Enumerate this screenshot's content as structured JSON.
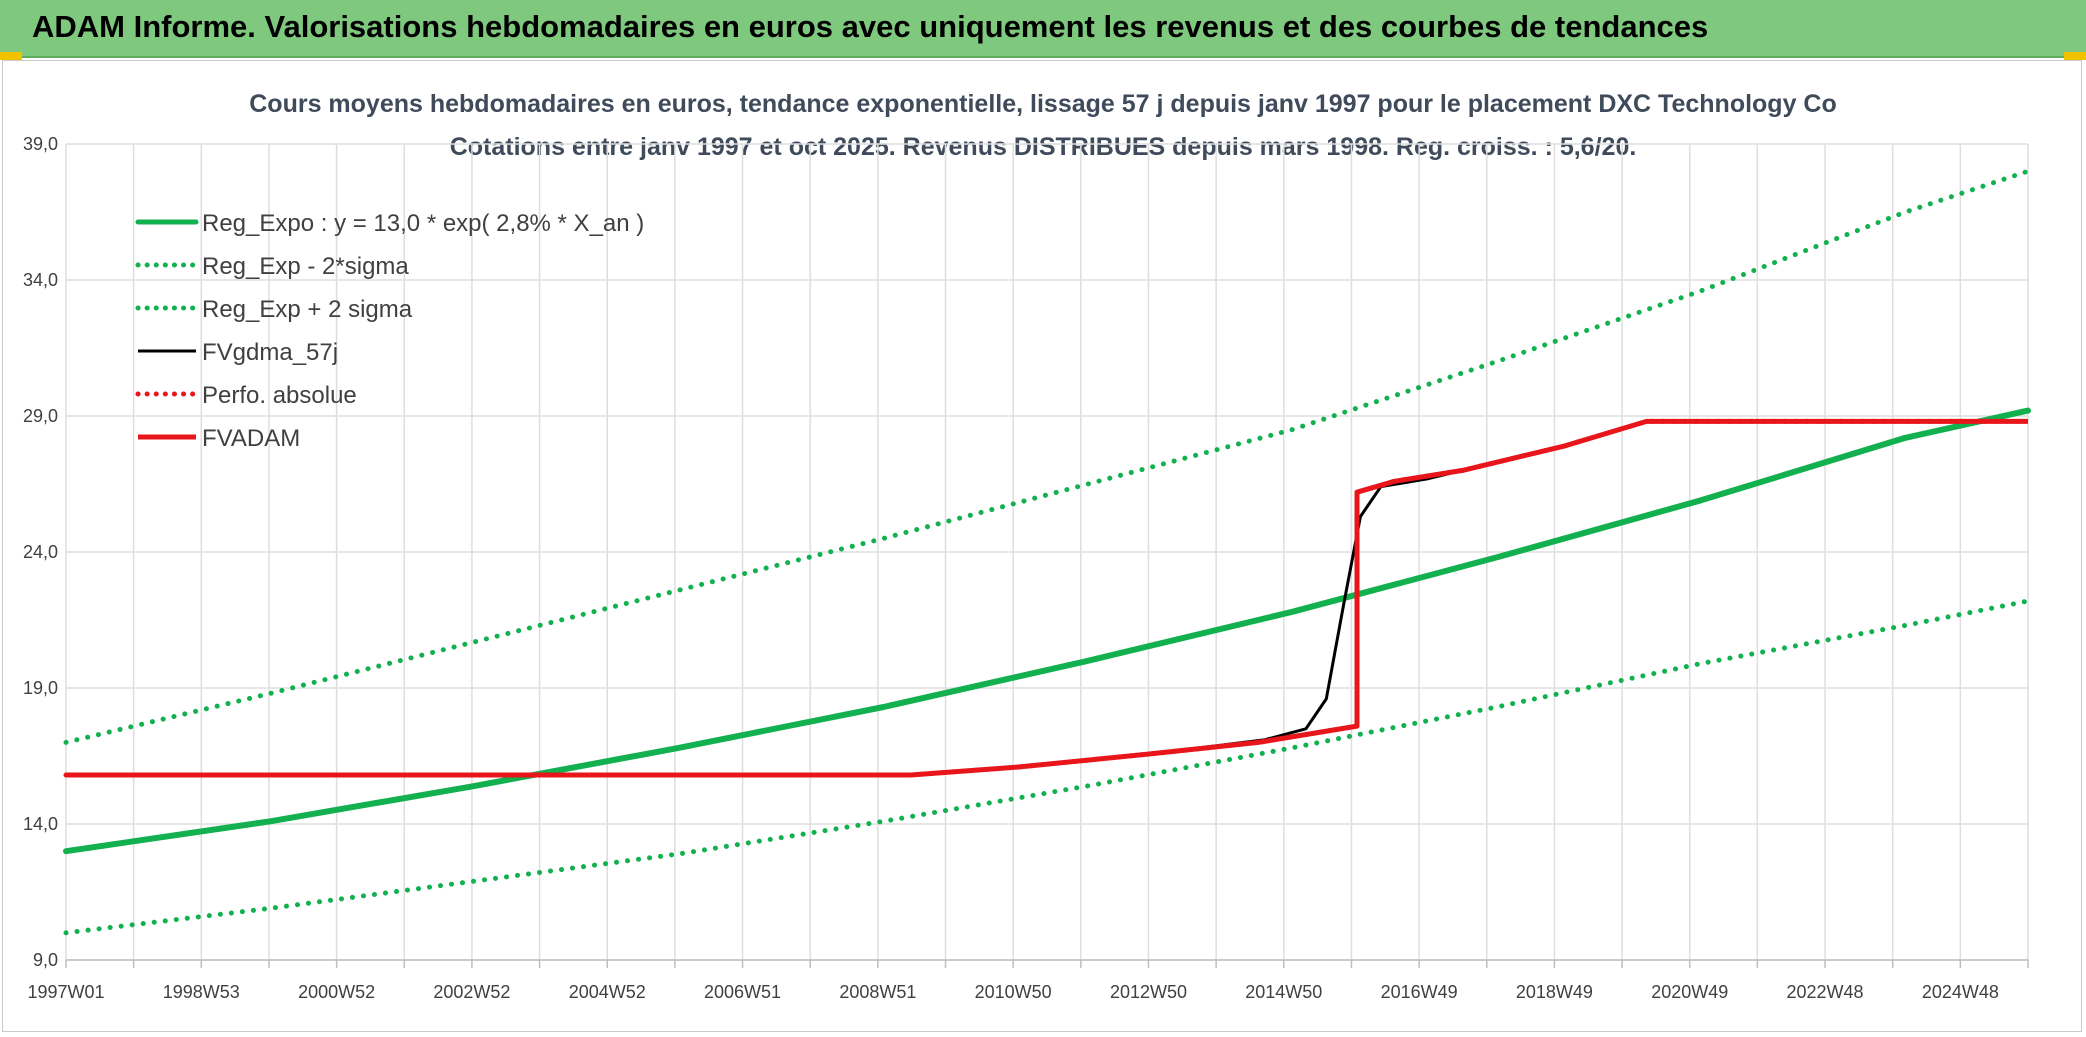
{
  "header": {
    "title": "ADAM Informe. Valorisations hebdomadaires en euros avec uniquement les revenus et des courbes de tendances"
  },
  "colors": {
    "banner": "#7fc97f",
    "green": "#12b04e",
    "black": "#000000",
    "red": "#e8151b",
    "grid": "#dedede"
  },
  "chart_data": {
    "type": "line",
    "title": "Cours moyens hebdomadaires en euros, tendance exponentielle, lissage 57 j depuis janv 1997 pour le placement DXC Technology Co",
    "subtitle": "Cotations entre janv 1997 et oct 2025. Revenus DISTRIBUES depuis mars 1998. Reg. croiss. : 5,6/20.",
    "xlabel": "",
    "ylabel": "",
    "ylim": [
      9.0,
      39.0
    ],
    "y_ticks": [
      "9,0",
      "14,0",
      "19,0",
      "24,0",
      "29,0",
      "34,0",
      "39,0"
    ],
    "x_ticks": [
      "1997W01",
      "1998W53",
      "2000W52",
      "2002W52",
      "2004W52",
      "2006W51",
      "2008W51",
      "2010W50",
      "2012W50",
      "2014W50",
      "2016W49",
      "2018W49",
      "2020W49",
      "2022W48",
      "2024W48"
    ],
    "grid": true,
    "legend_position": "top-left",
    "series": [
      {
        "name": "Reg_Expo : y = 13,0 * exp( 2,8% *  X_an )",
        "color": "#12b04e",
        "style": "solid",
        "x": [
          1997.0,
          2000.0,
          2003.0,
          2006.0,
          2009.0,
          2012.0,
          2015.0,
          2018.0,
          2021.0,
          2024.0,
          2025.8
        ],
        "y": [
          13.0,
          14.1,
          15.4,
          16.8,
          18.3,
          20.0,
          21.8,
          23.8,
          25.9,
          28.2,
          29.2
        ]
      },
      {
        "name": "Reg_Exp - 2*sigma",
        "color": "#12b04e",
        "style": "dotted",
        "x": [
          1997.0,
          2000.0,
          2003.0,
          2006.0,
          2009.0,
          2012.0,
          2015.0,
          2018.0,
          2021.0,
          2024.0,
          2025.8
        ],
        "y": [
          10.0,
          10.9,
          11.9,
          12.9,
          14.1,
          15.4,
          16.8,
          18.3,
          19.9,
          21.3,
          22.2
        ]
      },
      {
        "name": "Reg_Exp + 2 sigma",
        "color": "#12b04e",
        "style": "dotted",
        "x": [
          1997.0,
          2000.0,
          2003.0,
          2006.0,
          2009.0,
          2012.0,
          2015.0,
          2018.0,
          2021.0,
          2024.0,
          2025.8
        ],
        "y": [
          17.0,
          18.8,
          20.7,
          22.6,
          24.5,
          26.5,
          28.5,
          31.0,
          33.6,
          36.5,
          38.0
        ]
      },
      {
        "name": "FVgdma_57j",
        "color": "#000000",
        "style": "solid",
        "x": [
          1997.0,
          2009.4,
          2011.0,
          2013.0,
          2014.6,
          2015.2,
          2015.5,
          2015.75,
          2016.0,
          2016.3,
          2017.0,
          2019.0,
          2020.2,
          2025.8
        ],
        "y": [
          15.8,
          15.8,
          16.1,
          16.6,
          17.1,
          17.5,
          18.6,
          22.0,
          25.3,
          26.4,
          26.7,
          27.9,
          28.8,
          28.8
        ]
      },
      {
        "name": "Perfo. absolue",
        "color": "#e8151b",
        "style": "dotted",
        "x": [
          1997.0,
          2009.4,
          2011.0,
          2013.0,
          2014.5,
          2015.95,
          2015.95,
          2016.5,
          2017.5,
          2019.0,
          2020.2,
          2025.8
        ],
        "y": [
          15.8,
          15.8,
          16.1,
          16.6,
          17.0,
          17.6,
          26.2,
          26.6,
          27.0,
          27.9,
          28.8,
          28.8
        ]
      },
      {
        "name": "FVADAM",
        "color": "#e8151b",
        "style": "solid",
        "x": [
          1997.0,
          2009.4,
          2011.0,
          2013.0,
          2014.5,
          2015.95,
          2015.95,
          2016.5,
          2017.5,
          2019.0,
          2020.2,
          2025.8
        ],
        "y": [
          15.8,
          15.8,
          16.1,
          16.6,
          17.0,
          17.6,
          26.2,
          26.6,
          27.0,
          27.9,
          28.8,
          28.8
        ]
      }
    ]
  }
}
